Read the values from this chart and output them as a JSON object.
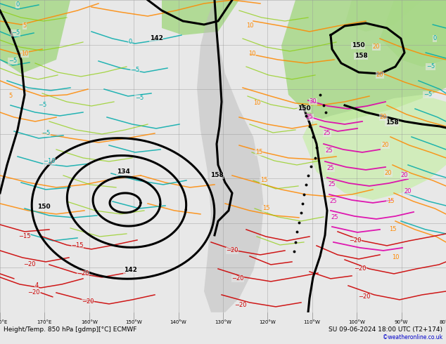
{
  "title_left": "Height/Temp. 850 hPa [gdmp][°C] ECMWF",
  "title_right": "SU 09-06-2024 18:00 UTC (T2+174)",
  "credit": "©weatheronline.co.uk",
  "bg_light": "#e8e8e8",
  "bg_green": "#a8d888",
  "bg_white": "#f0f0f0",
  "fig_width": 6.34,
  "fig_height": 4.9,
  "dpi": 100,
  "grid_color": "#999999",
  "grid_alpha": 0.6,
  "grid_linewidth": 0.5,
  "black_lw": 2.2,
  "orange_lw": 1.1,
  "teal_lw": 1.1,
  "red_lw": 1.1,
  "pink_lw": 1.3,
  "orange_color": "#ff8800",
  "teal_color": "#00aaaa",
  "red_color": "#cc0000",
  "pink_color": "#dd00aa",
  "lime_color": "#88cc00",
  "gray_color": "#888888",
  "label_fs": 6,
  "title_fs": 6.5,
  "credit_color": "#0000cc",
  "bottom_bar": "#dddddd"
}
